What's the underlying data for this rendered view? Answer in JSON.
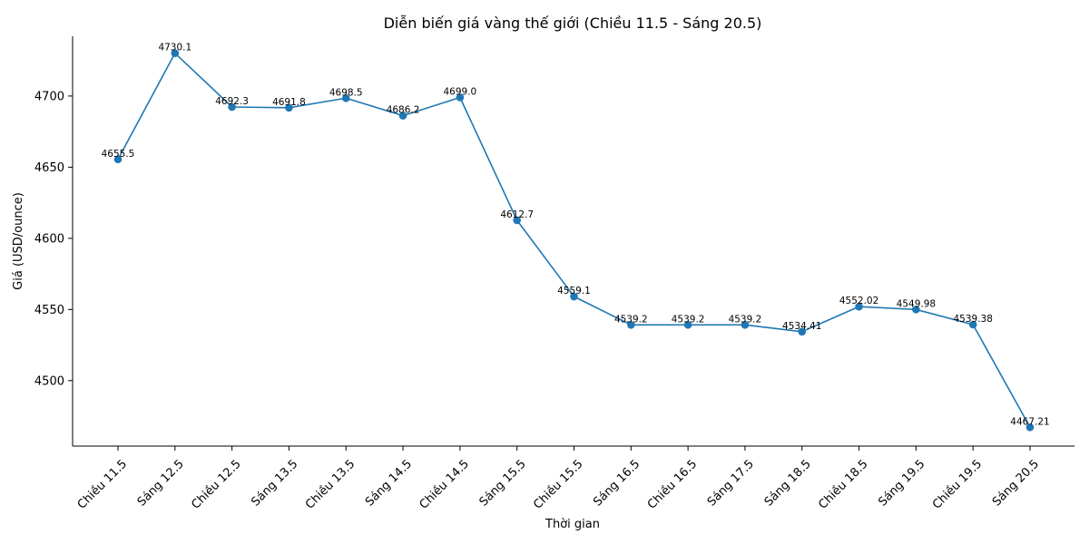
{
  "chart_data": {
    "type": "line",
    "title": "Diễn biến giá vàng thế giới (Chiều 11.5 - Sáng 20.5)",
    "xlabel": "Thời gian",
    "ylabel": "Giá (USD/ounce)",
    "categories": [
      "Chiều 11.5",
      "Sáng 12.5",
      "Chiều 12.5",
      "Sáng 13.5",
      "Chiều 13.5",
      "Sáng 14.5",
      "Chiều 14.5",
      "Sáng 15.5",
      "Chiều 15.5",
      "Sáng 16.5",
      "Chiều 16.5",
      "Sáng 17.5",
      "Sáng 18.5",
      "Chiều 18.5",
      "Sáng 19.5",
      "Chiều 19.5",
      "Sáng 20.5"
    ],
    "values": [
      4655.5,
      4730.1,
      4692.3,
      4691.8,
      4698.5,
      4686.2,
      4699.0,
      4612.7,
      4559.1,
      4539.2,
      4539.2,
      4539.2,
      4534.41,
      4552.02,
      4549.98,
      4539.38,
      4467.21
    ],
    "data_labels": [
      "4655.5",
      "4730.1",
      "4692.3",
      "4691.8",
      "4698.5",
      "4686.2",
      "4699.0",
      "4612.7",
      "4559.1",
      "4539.2",
      "4539.2",
      "4539.2",
      "4534.41",
      "4552.02",
      "4549.98",
      "4539.38",
      "4467.21"
    ],
    "yticks": [
      4500,
      4550,
      4600,
      4650,
      4700
    ],
    "ylim": [
      4454,
      4742
    ],
    "grid": false,
    "line_color": "#1f77b4",
    "marker_color": "#1f77b4"
  }
}
